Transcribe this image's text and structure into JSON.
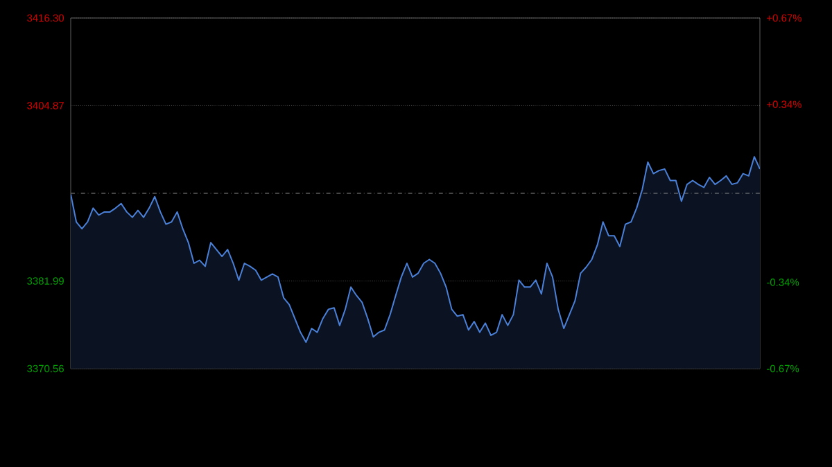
{
  "chart_data": {
    "type": "area",
    "categories": [
      null,
      null,
      null,
      null,
      null,
      null,
      null,
      null,
      null,
      null,
      null,
      null,
      null,
      null,
      null,
      null,
      null,
      null,
      null,
      null,
      null,
      null,
      null,
      null,
      null,
      null,
      null,
      null,
      null,
      null,
      null,
      null,
      null,
      null,
      null,
      null,
      null,
      null,
      null,
      null,
      null,
      null,
      null,
      null,
      null,
      null,
      null,
      null,
      null,
      null,
      null,
      null,
      null,
      null,
      null,
      null,
      null,
      null,
      null,
      null,
      null,
      null,
      null,
      null,
      null,
      null,
      null,
      null,
      null,
      null,
      null,
      null,
      null,
      null,
      null,
      null,
      null,
      null,
      null,
      null,
      null,
      null,
      null,
      null,
      null,
      null,
      null,
      null,
      null,
      null,
      null,
      null,
      null,
      null,
      null,
      null,
      null,
      null,
      null,
      null,
      null,
      null,
      null,
      null,
      null,
      null,
      null,
      null,
      null,
      null,
      null,
      null,
      null,
      null,
      null,
      null,
      null,
      null,
      null,
      null,
      null,
      null,
      null,
      null
    ],
    "series": [
      {
        "color": "#4a80d8",
        "values": [
          3393.3,
          3389.7,
          3388.8,
          3389.7,
          3391.5,
          3390.6,
          3391.0,
          3391.0,
          3391.5,
          3392.1,
          3391.0,
          3390.3,
          3391.2,
          3390.3,
          3391.5,
          3393.0,
          3391.0,
          3389.4,
          3389.7,
          3391.0,
          3388.8,
          3387.0,
          3384.3,
          3384.7,
          3383.9,
          3387.0,
          3386.1,
          3385.2,
          3386.1,
          3384.3,
          3382.1,
          3384.3,
          3383.9,
          3383.4,
          3382.1,
          3382.5,
          3382.9,
          3382.5,
          3379.8,
          3378.9,
          3377.1,
          3375.3,
          3374.0,
          3375.8,
          3375.3,
          3377.1,
          3378.3,
          3378.5,
          3376.2,
          3378.3,
          3381.2,
          3380.1,
          3379.2,
          3377.1,
          3374.7,
          3375.3,
          3375.6,
          3377.6,
          3380.1,
          3382.5,
          3384.3,
          3382.5,
          3383.0,
          3384.3,
          3384.8,
          3384.3,
          3383.0,
          3381.2,
          3378.3,
          3377.4,
          3377.6,
          3375.6,
          3376.7,
          3375.3,
          3376.5,
          3374.9,
          3375.3,
          3377.6,
          3376.2,
          3377.6,
          3382.1,
          3381.2,
          3381.2,
          3382.1,
          3380.3,
          3384.3,
          3382.5,
          3378.3,
          3375.8,
          3377.6,
          3379.4,
          3383.0,
          3383.8,
          3384.8,
          3386.7,
          3389.7,
          3387.9,
          3387.9,
          3386.5,
          3389.4,
          3389.7,
          3391.5,
          3393.9,
          3397.5,
          3396.0,
          3396.4,
          3396.6,
          3395.1,
          3395.1,
          3392.4,
          3394.6,
          3395.1,
          3394.6,
          3394.2,
          3395.5,
          3394.6,
          3395.1,
          3395.7,
          3394.6,
          3394.8,
          3396.0,
          3395.7,
          3398.2,
          3396.6
        ]
      }
    ],
    "ylim": [
      3370.56,
      3416.3
    ],
    "yticks": [
      {
        "value": 3370.56,
        "label": "3370.56"
      },
      {
        "value": 3381.99,
        "label": "3381.99"
      },
      {
        "value": 3404.87,
        "label": "3404.87"
      },
      {
        "value": 3416.3,
        "label": "3416.30"
      }
    ],
    "y2lim": [
      -0.67,
      0.67
    ],
    "y2ticks": [
      {
        "value": -0.67,
        "label": "-0.67%"
      },
      {
        "value": -0.34,
        "label": "-0.34%"
      },
      {
        "value": 0.34,
        "label": "+0.34%"
      },
      {
        "value": 0.67,
        "label": "+0.67%"
      }
    ],
    "ref_lines": [
      {
        "axis": "y",
        "value": 3393.43,
        "line_style": "dashdotted",
        "color": "#8a8a8a"
      }
    ],
    "grid": "y",
    "tick_labels": "y"
  }
}
